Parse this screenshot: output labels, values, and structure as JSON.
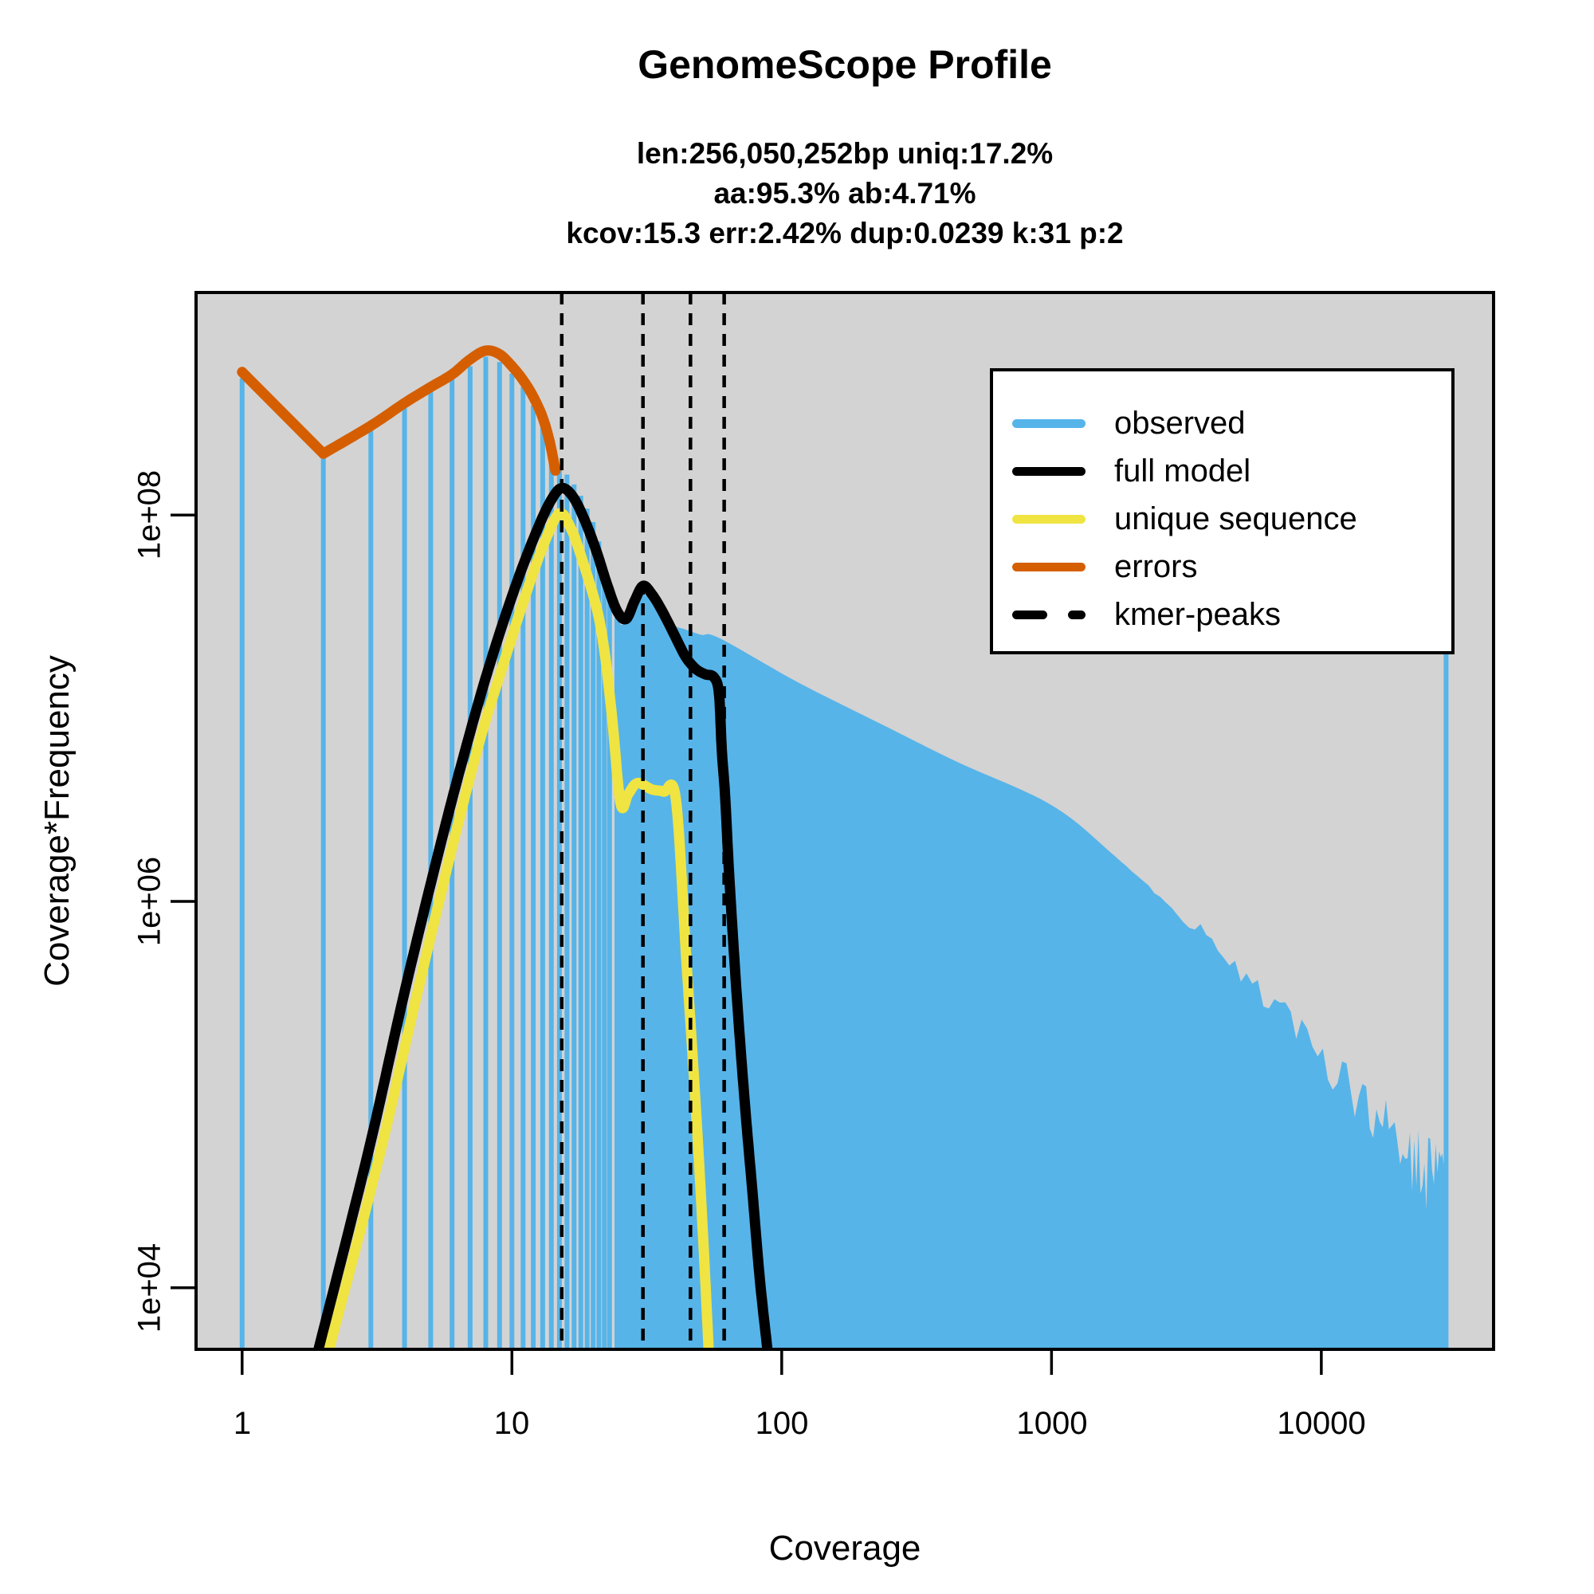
{
  "header": {
    "title": "GenomeScope Profile",
    "subtitle_lines": [
      "len:256,050,252bp uniq:17.2%",
      "aa:95.3% ab:4.71%",
      "kcov:15.3 err:2.42%  dup:0.0239  k:31 p:2"
    ]
  },
  "axes": {
    "xlabel": "Coverage",
    "ylabel": "Coverage*Frequency",
    "x_tick_labels": [
      "1",
      "10",
      "100",
      "1000",
      "10000"
    ],
    "y_tick_labels": [
      "1e+04",
      "1e+06",
      "1e+08"
    ]
  },
  "colors": {
    "observed": "#56B4E9",
    "full_model": "#000000",
    "unique": "#F0E442",
    "errors": "#D55E00",
    "plot_bg": "#D3D3D3",
    "kmer_peaks": "#000000"
  },
  "legend": {
    "items": [
      {
        "label": "observed",
        "color": "#56B4E9",
        "style": "line"
      },
      {
        "label": "full model",
        "color": "#000000",
        "style": "line"
      },
      {
        "label": "unique sequence",
        "color": "#F0E442",
        "style": "line"
      },
      {
        "label": "errors",
        "color": "#D55E00",
        "style": "line"
      },
      {
        "label": "kmer-peaks",
        "color": "#000000",
        "style": "dashed"
      }
    ]
  },
  "chart_data": {
    "type": "histogram+line",
    "title": "GenomeScope Profile",
    "xlabel": "Coverage",
    "ylabel": "Coverage*Frequency",
    "x_scale": "log",
    "y_scale": "log",
    "x_domain": [
      0.675,
      43500
    ],
    "y_domain": [
      4800,
      1420000000
    ],
    "x_ticks": [
      1,
      10,
      100,
      1000,
      10000
    ],
    "y_ticks": [
      10000,
      1000000,
      100000000
    ],
    "grid": false,
    "legend_position": "top-right-inside",
    "kmer_peaks": [
      15.3,
      30.6,
      45.9,
      61.2
    ],
    "observed_bars": {
      "coverage": [
        1,
        2,
        3,
        4,
        5,
        6,
        7,
        8,
        9,
        10,
        11,
        12,
        13,
        14,
        15,
        16,
        17,
        18,
        19,
        20,
        21,
        22,
        23
      ],
      "values": [
        510000000.0,
        200000000.0,
        280000000.0,
        380000000.0,
        470000000.0,
        520000000.0,
        590000000.0,
        660000000.0,
        620000000.0,
        540000000.0,
        460000000.0,
        370000000.0,
        290000000.0,
        210000000.0,
        175000000.0,
        162000000.0,
        144000000.0,
        126000000.0,
        108000000.0,
        92000000.0,
        73000000.0,
        55000000.0,
        42000000.0
      ],
      "label": "observed"
    },
    "observed_envelope": {
      "coverage": [
        24,
        25.5,
        27.3,
        30.5,
        34.8,
        39.6,
        44.3,
        50.3,
        59,
        114,
        225,
        444,
        1000,
        1730,
        3400,
        6700,
        12400,
        18700,
        24500,
        29500
      ],
      "values": [
        32000000.0,
        27000000.0,
        31000000.0,
        39000000.0,
        32000000.0,
        27000000.0,
        25500000.0,
        24000000.0,
        23000000.0,
        13700000.0,
        8500000.0,
        5300000.0,
        3150000.0,
        1700000.0,
        720000.0,
        290000.0,
        110000.0,
        58000.0,
        40000.0,
        33000.0
      ]
    },
    "max_coverage_spike": {
      "coverage": 29000,
      "value": 50000000.0
    },
    "series": [
      {
        "name": "errors",
        "color": "#D55E00",
        "corner_after": 1,
        "coverage": [
          1,
          2,
          3,
          4,
          5,
          6,
          7,
          8,
          9,
          10,
          11,
          12,
          13,
          13.8,
          14.5
        ],
        "values": [
          550000000.0,
          208000000.0,
          290000000.0,
          380000000.0,
          460000000.0,
          535000000.0,
          640000000.0,
          710000000.0,
          680000000.0,
          590000000.0,
          500000000.0,
          410000000.0,
          320000000.0,
          240000000.0,
          170000000.0
        ]
      },
      {
        "name": "full model",
        "color": "#000000",
        "coverage": [
          1.92,
          2.94,
          4.0,
          5.5,
          7.0,
          8.5,
          10.5,
          12.5,
          14.0,
          15.3,
          16.8,
          18.5,
          20.5,
          22.5,
          24.5,
          26.5,
          28.5,
          30.6,
          33,
          36,
          40,
          44,
          48,
          52,
          56,
          58.5,
          60,
          61.7,
          64,
          68.2,
          73,
          78.1,
          83,
          88.5
        ],
        "values": [
          4800.0,
          51000.0,
          340000.0,
          2100000.0,
          7500000.0,
          19000000.0,
          46000000.0,
          86000000.0,
          120000000.0,
          138000000.0,
          125000000.0,
          96000000.0,
          66000000.0,
          44000000.0,
          32000000.0,
          29000000.0,
          36000000.0,
          43000000.0,
          39000000.0,
          32000000.0,
          24000000.0,
          18500000.0,
          16000000.0,
          15000000.0,
          14500000.0,
          12000000.0,
          6000000.0,
          3500000.0,
          1300000.0,
          320000.0,
          90000.0,
          30000.0,
          11000.0,
          4800.0
        ]
      },
      {
        "name": "unique sequence",
        "color": "#F0E442",
        "coverage": [
          2.1,
          3.2,
          4.4,
          6.0,
          7.6,
          9.3,
          11.4,
          13.3,
          15.0,
          16.5,
          18,
          20.5,
          22,
          23.5,
          25.3,
          27,
          29.2,
          33,
          36.5,
          40.5,
          44.3,
          47,
          49.2,
          51.5,
          53.6
        ],
        "values": [
          4800.0,
          46000.0,
          310000.0,
          1900000.0,
          6800000.0,
          17000000.0,
          41000000.0,
          74000000.0,
          102000000.0,
          86000000.0,
          62000000.0,
          34000000.0,
          20000000.0,
          9000000.0,
          3200000.0,
          3600000.0,
          4100000.0,
          3800000.0,
          3700000.0,
          3400000.0,
          500000.0,
          140000.0,
          49000.0,
          15000.0,
          4800.0
        ]
      }
    ]
  }
}
